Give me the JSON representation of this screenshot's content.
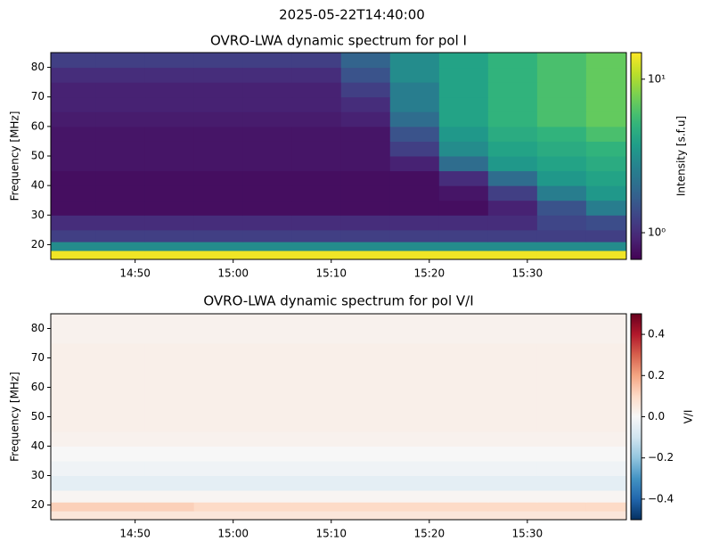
{
  "title": "2025-05-22T14:40:00",
  "chart_data": [
    {
      "type": "heatmap",
      "title": "OVRO-LWA dynamic spectrum for pol I",
      "y_label": "Frequency [MHz]",
      "x_bins": [
        881.4,
        886,
        891,
        896,
        901,
        906,
        911,
        916,
        921,
        926,
        931,
        936,
        940.1
      ],
      "y_bins": [
        15,
        18,
        21,
        25,
        30,
        35,
        40,
        45,
        50,
        55,
        60,
        65,
        70,
        75,
        80,
        85
      ],
      "values": [
        [
          14,
          14,
          14,
          14,
          14,
          14,
          14,
          14,
          14,
          14,
          14,
          14
        ],
        [
          3,
          3,
          3,
          3,
          3,
          3,
          3,
          3,
          3,
          3,
          3,
          3
        ],
        [
          1.2,
          1.2,
          1.2,
          1.2,
          1.2,
          1.2,
          1.2,
          1.2,
          1.2,
          1.2,
          1.2,
          1.2
        ],
        [
          1.0,
          1.0,
          1.0,
          1.0,
          1.0,
          1.0,
          1.0,
          1.0,
          1.0,
          1.0,
          1.3,
          1.4
        ],
        [
          0.75,
          0.75,
          0.75,
          0.75,
          0.75,
          0.75,
          0.75,
          0.75,
          0.75,
          0.9,
          1.5,
          2.5
        ],
        [
          0.75,
          0.75,
          0.75,
          0.75,
          0.75,
          0.75,
          0.75,
          0.75,
          0.8,
          1.2,
          2.5,
          3.5
        ],
        [
          0.75,
          0.75,
          0.75,
          0.75,
          0.75,
          0.75,
          0.75,
          0.75,
          1.0,
          2,
          3.5,
          4
        ],
        [
          0.8,
          0.8,
          0.8,
          0.8,
          0.8,
          0.8,
          0.8,
          0.9,
          2,
          3.5,
          4,
          4.5
        ],
        [
          0.8,
          0.8,
          0.8,
          0.8,
          0.8,
          0.8,
          0.8,
          1.2,
          3,
          4,
          4.5,
          5
        ],
        [
          0.8,
          0.8,
          0.8,
          0.8,
          0.8,
          0.8,
          0.8,
          1.5,
          3.5,
          4.5,
          5,
          6
        ],
        [
          0.85,
          0.85,
          0.85,
          0.85,
          0.85,
          0.85,
          0.9,
          2,
          4,
          5,
          6,
          7
        ],
        [
          0.9,
          0.9,
          0.9,
          0.9,
          0.9,
          0.9,
          1.0,
          2.5,
          4,
          5,
          6,
          7
        ],
        [
          0.9,
          0.9,
          0.9,
          0.9,
          0.9,
          0.9,
          1.2,
          2.5,
          4,
          5,
          6,
          7
        ],
        [
          1.0,
          1.0,
          1.0,
          1.0,
          1.0,
          1.0,
          1.5,
          3,
          4,
          5,
          6,
          7
        ],
        [
          1.2,
          1.2,
          1.2,
          1.2,
          1.2,
          1.2,
          1.8,
          3,
          4,
          5,
          6,
          7
        ]
      ],
      "xlim": [
        881.4,
        940.1
      ],
      "xticks": [
        {
          "value": 890,
          "label": "14:50"
        },
        {
          "value": 900,
          "label": "15:00"
        },
        {
          "value": 910,
          "label": "15:10"
        },
        {
          "value": 920,
          "label": "15:20"
        },
        {
          "value": 930,
          "label": "15:30"
        }
      ],
      "ylim": [
        15,
        85
      ],
      "yticks": [
        20,
        30,
        40,
        50,
        60,
        70,
        80
      ],
      "colorbar": {
        "label": "Intensity [s.f.u]",
        "colormap": "viridis",
        "scale": "log",
        "lim": [
          0.67,
          14.9
        ],
        "ticks": [
          {
            "value": 1,
            "label": "10⁰"
          },
          {
            "value": 10,
            "label": "10¹"
          }
        ]
      }
    },
    {
      "type": "heatmap",
      "title": "OVRO-LWA dynamic spectrum for pol V/I",
      "y_label": "Frequency [MHz]",
      "x_bins": [
        881.4,
        886,
        891,
        896,
        901,
        906,
        911,
        916,
        921,
        926,
        931,
        936,
        940.1
      ],
      "y_bins": [
        15,
        18,
        21,
        25,
        30,
        35,
        40,
        45,
        50,
        55,
        60,
        65,
        70,
        75,
        80,
        85
      ],
      "values": [
        [
          0.06,
          0.06,
          0.06,
          0.06,
          0.06,
          0.06,
          0.06,
          0.06,
          0.06,
          0.06,
          0.06,
          0.06
        ],
        [
          0.12,
          0.12,
          0.12,
          0.1,
          0.1,
          0.1,
          0.1,
          0.1,
          0.1,
          0.1,
          0.1,
          0.1
        ],
        [
          0.01,
          0.01,
          0.01,
          0.01,
          0.01,
          0.01,
          0.01,
          0.01,
          0.01,
          0.01,
          0.01,
          0.01
        ],
        [
          -0.05,
          -0.05,
          -0.05,
          -0.05,
          -0.05,
          -0.05,
          -0.05,
          -0.05,
          -0.05,
          -0.05,
          -0.05,
          -0.05
        ],
        [
          -0.02,
          -0.02,
          -0.02,
          -0.02,
          -0.02,
          -0.02,
          -0.02,
          -0.02,
          -0.02,
          -0.02,
          -0.02,
          -0.02
        ],
        [
          0.0,
          0.0,
          0.0,
          0.0,
          0.0,
          0.0,
          0.0,
          0.0,
          0.0,
          0.0,
          0.0,
          0.0
        ],
        [
          0.02,
          0.02,
          0.02,
          0.02,
          0.02,
          0.02,
          0.02,
          0.02,
          0.02,
          0.02,
          0.02,
          0.02
        ],
        [
          0.03,
          0.03,
          0.03,
          0.03,
          0.03,
          0.03,
          0.03,
          0.03,
          0.03,
          0.03,
          0.03,
          0.03
        ],
        [
          0.03,
          0.03,
          0.03,
          0.03,
          0.03,
          0.03,
          0.03,
          0.03,
          0.03,
          0.03,
          0.03,
          0.03
        ],
        [
          0.03,
          0.03,
          0.03,
          0.03,
          0.03,
          0.03,
          0.03,
          0.03,
          0.03,
          0.03,
          0.03,
          0.03
        ],
        [
          0.03,
          0.03,
          0.03,
          0.03,
          0.03,
          0.03,
          0.03,
          0.03,
          0.03,
          0.03,
          0.03,
          0.03
        ],
        [
          0.03,
          0.03,
          0.03,
          0.03,
          0.03,
          0.03,
          0.03,
          0.03,
          0.03,
          0.03,
          0.03,
          0.03
        ],
        [
          0.03,
          0.03,
          0.03,
          0.03,
          0.03,
          0.03,
          0.03,
          0.03,
          0.03,
          0.03,
          0.03,
          0.03
        ],
        [
          0.02,
          0.02,
          0.02,
          0.02,
          0.02,
          0.02,
          0.02,
          0.02,
          0.02,
          0.02,
          0.02,
          0.02
        ],
        [
          0.02,
          0.02,
          0.02,
          0.02,
          0.02,
          0.02,
          0.02,
          0.02,
          0.02,
          0.02,
          0.02,
          0.02
        ]
      ],
      "xlim": [
        881.4,
        940.1
      ],
      "xticks": [
        {
          "value": 890,
          "label": "14:50"
        },
        {
          "value": 900,
          "label": "15:00"
        },
        {
          "value": 910,
          "label": "15:10"
        },
        {
          "value": 920,
          "label": "15:20"
        },
        {
          "value": 930,
          "label": "15:30"
        }
      ],
      "ylim": [
        15,
        85
      ],
      "yticks": [
        20,
        30,
        40,
        50,
        60,
        70,
        80
      ],
      "colorbar": {
        "label": "V/I",
        "colormap": "RdBu_r",
        "scale": "linear",
        "lim": [
          -0.5,
          0.5
        ],
        "ticks": [
          {
            "value": -0.4,
            "label": "−0.4"
          },
          {
            "value": -0.2,
            "label": "−0.2"
          },
          {
            "value": 0,
            "label": "0.0"
          },
          0.2,
          0.4
        ]
      }
    }
  ]
}
